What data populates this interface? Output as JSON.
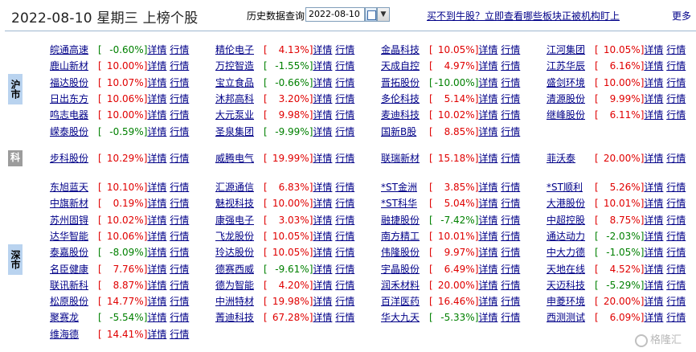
{
  "header": {
    "title": "2022-08-10 星期三 上榜个股",
    "hist_label": "历史数据查询:",
    "date_value": "2022-08-10",
    "top_link": "买不到牛股？立即查看哪些板块正被机构盯上",
    "more_link": "更多"
  },
  "link_labels": {
    "detail": "详情",
    "quote": "行情"
  },
  "sections": [
    {
      "key": "sh",
      "label": "沪市"
    },
    {
      "key": "ke",
      "label": "科"
    },
    {
      "key": "sz",
      "label": "深市"
    }
  ],
  "stocks": {
    "sh": [
      [
        {
          "name": "皖通高速",
          "pct": "-0.60%",
          "dir": "down"
        },
        {
          "name": "精伦电子",
          "pct": "4.13%",
          "dir": "up"
        },
        {
          "name": "金晶科技",
          "pct": "10.05%",
          "dir": "up"
        },
        {
          "name": "江河集团",
          "pct": "10.05%",
          "dir": "up"
        }
      ],
      [
        {
          "name": "鹿山新材",
          "pct": "10.00%",
          "dir": "up"
        },
        {
          "name": "万控智造",
          "pct": "-1.55%",
          "dir": "down"
        },
        {
          "name": "天成自控",
          "pct": "4.97%",
          "dir": "up"
        },
        {
          "name": "江苏华辰",
          "pct": "6.16%",
          "dir": "up"
        }
      ],
      [
        {
          "name": "福达股份",
          "pct": "10.07%",
          "dir": "up"
        },
        {
          "name": "宝立食品",
          "pct": "-0.66%",
          "dir": "down"
        },
        {
          "name": "晋拓股份",
          "pct": "-10.00%",
          "dir": "down"
        },
        {
          "name": "盛剑环境",
          "pct": "10.00%",
          "dir": "up"
        }
      ],
      [
        {
          "name": "日出东方",
          "pct": "10.06%",
          "dir": "up"
        },
        {
          "name": "沐邦高科",
          "pct": "3.20%",
          "dir": "up"
        },
        {
          "name": "多伦科技",
          "pct": "5.14%",
          "dir": "up"
        },
        {
          "name": "清源股份",
          "pct": "9.99%",
          "dir": "up"
        }
      ],
      [
        {
          "name": "鸣志电器",
          "pct": "10.00%",
          "dir": "up"
        },
        {
          "name": "大元泵业",
          "pct": "9.98%",
          "dir": "up"
        },
        {
          "name": "麦迪科技",
          "pct": "10.02%",
          "dir": "up"
        },
        {
          "name": "继峰股份",
          "pct": "6.11%",
          "dir": "up"
        }
      ],
      [
        {
          "name": "嵘泰股份",
          "pct": "-0.59%",
          "dir": "down"
        },
        {
          "name": "圣泉集团",
          "pct": "-9.99%",
          "dir": "down"
        },
        {
          "name": "国新B股",
          "pct": "8.85%",
          "dir": "up"
        }
      ]
    ],
    "ke": [
      [
        {
          "name": "步科股份",
          "pct": "10.29%",
          "dir": "up"
        },
        {
          "name": "威腾电气",
          "pct": "19.99%",
          "dir": "up"
        },
        {
          "name": "联瑞新材",
          "pct": "15.18%",
          "dir": "up"
        },
        {
          "name": "菲沃泰",
          "pct": "20.00%",
          "dir": "up"
        }
      ]
    ],
    "sz": [
      [
        {
          "name": "东旭蓝天",
          "pct": "10.10%",
          "dir": "up"
        },
        {
          "name": "汇源通信",
          "pct": "6.83%",
          "dir": "up"
        },
        {
          "name": "*ST金洲",
          "pct": "3.85%",
          "dir": "up"
        },
        {
          "name": "*ST顺利",
          "pct": "5.26%",
          "dir": "up"
        }
      ],
      [
        {
          "name": "中旗新材",
          "pct": "0.19%",
          "dir": "up"
        },
        {
          "name": "魅视科技",
          "pct": "10.00%",
          "dir": "up"
        },
        {
          "name": "*ST科华",
          "pct": "5.04%",
          "dir": "up"
        },
        {
          "name": "大港股份",
          "pct": "10.01%",
          "dir": "up"
        }
      ],
      [
        {
          "name": "苏州固锝",
          "pct": "10.02%",
          "dir": "up"
        },
        {
          "name": "康强电子",
          "pct": "3.03%",
          "dir": "up"
        },
        {
          "name": "融捷股份",
          "pct": "-7.42%",
          "dir": "down"
        },
        {
          "name": "中超控股",
          "pct": "8.75%",
          "dir": "up"
        }
      ],
      [
        {
          "name": "达华智能",
          "pct": "10.06%",
          "dir": "up"
        },
        {
          "name": "飞龙股份",
          "pct": "10.05%",
          "dir": "up"
        },
        {
          "name": "南方精工",
          "pct": "10.01%",
          "dir": "up"
        },
        {
          "name": "通达动力",
          "pct": "-2.03%",
          "dir": "down"
        }
      ],
      [
        {
          "name": "泰嘉股份",
          "pct": "-8.09%",
          "dir": "down"
        },
        {
          "name": "玲达股份",
          "pct": "10.05%",
          "dir": "up"
        },
        {
          "name": "伟隆股份",
          "pct": "9.97%",
          "dir": "up"
        },
        {
          "name": "中大力德",
          "pct": "-1.05%",
          "dir": "down"
        }
      ],
      [
        {
          "name": "名臣健康",
          "pct": "7.76%",
          "dir": "up"
        },
        {
          "name": "德赛西威",
          "pct": "-9.61%",
          "dir": "down"
        },
        {
          "name": "宇晶股份",
          "pct": "6.49%",
          "dir": "up"
        },
        {
          "name": "天地在线",
          "pct": "4.52%",
          "dir": "up"
        }
      ],
      [
        {
          "name": "联讯新科",
          "pct": "8.87%",
          "dir": "up"
        },
        {
          "name": "德为智能",
          "pct": "4.20%",
          "dir": "up"
        },
        {
          "name": "润禾材料",
          "pct": "20.00%",
          "dir": "up"
        },
        {
          "name": "天迈科技",
          "pct": "-5.29%",
          "dir": "down"
        }
      ],
      [
        {
          "name": "松原股份",
          "pct": "14.77%",
          "dir": "up"
        },
        {
          "name": "中洲特材",
          "pct": "19.98%",
          "dir": "up"
        },
        {
          "name": "百洋医药",
          "pct": "16.46%",
          "dir": "up"
        },
        {
          "name": "申菱环境",
          "pct": "20.00%",
          "dir": "up"
        }
      ],
      [
        {
          "name": "聚赛龙",
          "pct": "-5.54%",
          "dir": "down"
        },
        {
          "name": "菁迪科技",
          "pct": "67.28%",
          "dir": "up"
        },
        {
          "name": "华大九天",
          "pct": "-5.33%",
          "dir": "down"
        },
        {
          "name": "西测测试",
          "pct": "6.09%",
          "dir": "up"
        }
      ],
      [
        {
          "name": "维海德",
          "pct": "14.41%",
          "dir": "up"
        }
      ]
    ]
  },
  "watermark": "格隆汇",
  "colors": {
    "up": "#e00000",
    "down": "#008000",
    "link": "#000088",
    "section_blue": "#b9d3ef",
    "section_gray": "#9c9c9c"
  }
}
